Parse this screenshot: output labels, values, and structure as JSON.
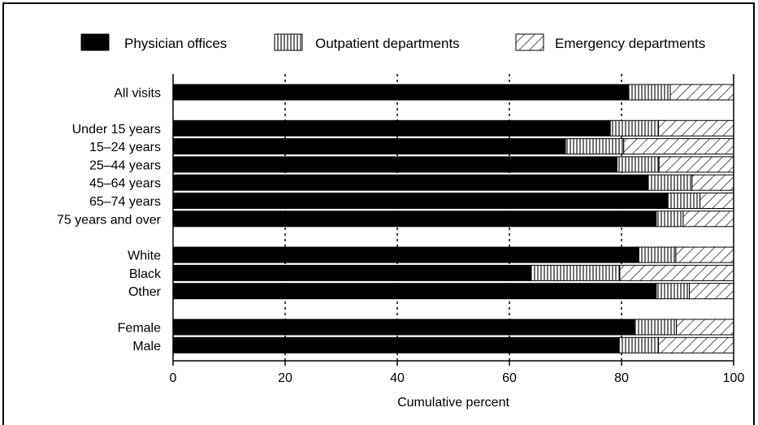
{
  "chart_data": {
    "type": "bar",
    "orientation": "horizontal",
    "stacked": true,
    "title": "",
    "xlabel": "Cumulative percent",
    "ylabel": "",
    "xlim": [
      0,
      100
    ],
    "x_ticks": [
      "0",
      "20",
      "40",
      "60",
      "80",
      "100"
    ],
    "grid": "vertical dotted at 20, 40, 60, 80",
    "legend_position": "top",
    "categories": [
      "All visits",
      "Under 15 years",
      "15–24 years",
      "25–44 years",
      "45–64 years",
      "65–74 years",
      "75 years and over",
      "White",
      "Black",
      "Other",
      "Female",
      "Male"
    ],
    "groups": [
      [
        0
      ],
      [
        1,
        2,
        3,
        4,
        5,
        6
      ],
      [
        7,
        8,
        9
      ],
      [
        10,
        11
      ]
    ],
    "series": [
      {
        "name": "Physician offices",
        "pattern": "solid",
        "values": [
          81.2,
          78.0,
          70.0,
          79.2,
          84.7,
          88.3,
          86.2,
          83.1,
          63.8,
          86.2,
          82.3,
          79.6
        ]
      },
      {
        "name": "Outpatient departments",
        "pattern": "vertical-lines",
        "values": [
          7.5,
          8.6,
          10.4,
          7.5,
          7.9,
          5.7,
          4.8,
          6.6,
          15.9,
          5.9,
          7.5,
          7.0
        ]
      },
      {
        "name": "Emergency departments",
        "pattern": "diagonal-hatch",
        "values": [
          11.3,
          13.4,
          19.6,
          13.3,
          7.4,
          6.0,
          9.0,
          10.3,
          20.3,
          7.9,
          10.2,
          13.4
        ]
      }
    ]
  }
}
